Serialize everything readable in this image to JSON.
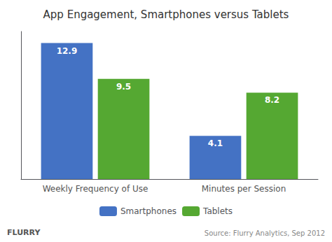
{
  "chart_data": {
    "type": "bar",
    "title": "App Engagement, Smartphones versus Tablets",
    "categories": [
      "Weekly Frequency of Use",
      "Minutes per Session"
    ],
    "series": [
      {
        "name": "Smartphones",
        "color": "#4472C4",
        "values": [
          12.9,
          4.1
        ]
      },
      {
        "name": "Tablets",
        "color": "#55A832",
        "values": [
          9.5,
          8.2
        ]
      }
    ],
    "ylim": [
      0,
      14
    ],
    "data_labels": true,
    "tick_labels": "x",
    "grid": false,
    "legend": "bottom",
    "annotations": [
      "FLURRY",
      "Source: Flurry Analytics, Sep 2012"
    ]
  }
}
